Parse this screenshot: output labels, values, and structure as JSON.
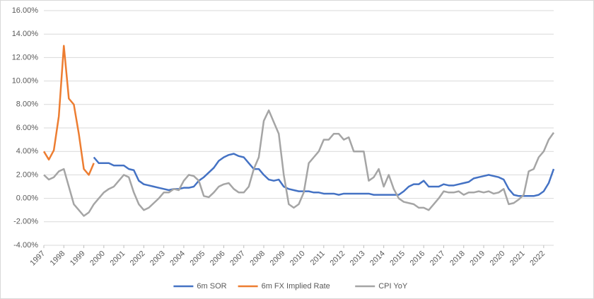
{
  "chart_data": {
    "type": "line",
    "x": [
      1997,
      1997.25,
      1997.5,
      1997.75,
      1998,
      1998.25,
      1998.5,
      1998.75,
      1999,
      1999.25,
      1999.5,
      1999.75,
      2000,
      2000.25,
      2000.5,
      2000.75,
      2001,
      2001.25,
      2001.5,
      2001.75,
      2002,
      2002.25,
      2002.5,
      2002.75,
      2003,
      2003.25,
      2003.5,
      2003.75,
      2004,
      2004.25,
      2004.5,
      2004.75,
      2005,
      2005.25,
      2005.5,
      2005.75,
      2006,
      2006.25,
      2006.5,
      2006.75,
      2007,
      2007.25,
      2007.5,
      2007.75,
      2008,
      2008.25,
      2008.5,
      2008.75,
      2009,
      2009.25,
      2009.5,
      2009.75,
      2010,
      2010.25,
      2010.5,
      2010.75,
      2011,
      2011.25,
      2011.5,
      2011.75,
      2012,
      2012.25,
      2012.5,
      2012.75,
      2013,
      2013.25,
      2013.5,
      2013.75,
      2014,
      2014.25,
      2014.5,
      2014.75,
      2015,
      2015.25,
      2015.5,
      2015.75,
      2016,
      2016.25,
      2016.5,
      2016.75,
      2017,
      2017.25,
      2017.5,
      2017.75,
      2018,
      2018.25,
      2018.5,
      2018.75,
      2019,
      2019.25,
      2019.5,
      2019.75,
      2020,
      2020.25,
      2020.5,
      2020.75,
      2021,
      2021.25,
      2021.5,
      2021.75,
      2022,
      2022.25,
      2022.5
    ],
    "series": [
      {
        "name": "6m SOR",
        "color": "#4472c4",
        "values": [
          null,
          null,
          null,
          null,
          null,
          null,
          null,
          null,
          null,
          null,
          3.5,
          3.0,
          3.0,
          3.0,
          2.8,
          2.8,
          2.8,
          2.5,
          2.4,
          1.5,
          1.2,
          1.1,
          1.0,
          0.9,
          0.8,
          0.7,
          0.8,
          0.8,
          0.9,
          0.9,
          1.0,
          1.5,
          1.8,
          2.2,
          2.6,
          3.2,
          3.5,
          3.7,
          3.8,
          3.6,
          3.5,
          3.0,
          2.5,
          2.5,
          2.0,
          1.6,
          1.5,
          1.6,
          1.0,
          0.8,
          0.7,
          0.6,
          0.6,
          0.6,
          0.5,
          0.5,
          0.4,
          0.4,
          0.4,
          0.3,
          0.4,
          0.4,
          0.4,
          0.4,
          0.4,
          0.4,
          0.3,
          0.3,
          0.3,
          0.3,
          0.3,
          0.3,
          0.6,
          1.0,
          1.2,
          1.2,
          1.5,
          1.0,
          1.0,
          1.0,
          1.2,
          1.1,
          1.1,
          1.2,
          1.3,
          1.4,
          1.7,
          1.8,
          1.9,
          2.0,
          1.9,
          1.8,
          1.6,
          0.8,
          0.3,
          0.2,
          0.2,
          0.2,
          0.2,
          0.3,
          0.6,
          1.3,
          2.5
        ]
      },
      {
        "name": "6m FX Implied Rate",
        "color": "#ed7d31",
        "values": [
          4.0,
          3.3,
          4.1,
          7.0,
          13.0,
          8.5,
          8.0,
          5.5,
          2.5,
          2.0,
          3.0,
          null,
          null,
          null,
          null,
          null,
          null,
          null,
          null,
          null,
          null,
          null,
          null,
          null,
          null,
          null,
          null,
          null,
          null,
          null,
          null,
          null,
          null,
          null,
          null,
          null,
          null,
          null,
          null,
          null,
          null,
          null,
          null,
          null,
          null,
          null,
          null,
          null,
          null,
          null,
          null,
          null,
          null,
          null,
          null,
          null,
          null,
          null,
          null,
          null,
          null,
          null,
          null,
          null,
          null,
          null,
          null,
          null,
          null,
          null,
          null,
          null,
          null,
          null,
          null,
          null,
          null,
          null,
          null,
          null,
          null,
          null,
          null,
          null,
          null,
          null,
          null,
          null,
          null,
          null,
          null,
          null,
          null,
          null,
          null,
          null,
          null,
          null,
          null,
          null,
          null,
          null,
          null
        ]
      },
      {
        "name": "CPI YoY",
        "color": "#a5a5a5",
        "values": [
          2.0,
          1.6,
          1.8,
          2.3,
          2.5,
          1.0,
          -0.5,
          -1.0,
          -1.5,
          -1.2,
          -0.5,
          0.0,
          0.5,
          0.8,
          1.0,
          1.5,
          2.0,
          1.8,
          0.5,
          -0.5,
          -1.0,
          -0.8,
          -0.4,
          0.0,
          0.5,
          0.5,
          0.8,
          0.7,
          1.5,
          2.0,
          1.9,
          1.5,
          0.2,
          0.1,
          0.5,
          1.0,
          1.2,
          1.3,
          0.8,
          0.5,
          0.5,
          1.0,
          2.5,
          3.5,
          6.6,
          7.5,
          6.5,
          5.5,
          2.0,
          -0.5,
          -0.8,
          -0.5,
          0.5,
          3.0,
          3.5,
          4.0,
          5.0,
          5.0,
          5.5,
          5.5,
          5.0,
          5.2,
          4.0,
          4.0,
          4.0,
          1.5,
          1.8,
          2.5,
          1.0,
          2.0,
          0.8,
          0.0,
          -0.3,
          -0.4,
          -0.5,
          -0.8,
          -0.8,
          -1.0,
          -0.5,
          0.0,
          0.6,
          0.5,
          0.5,
          0.6,
          0.3,
          0.5,
          0.5,
          0.6,
          0.5,
          0.6,
          0.4,
          0.5,
          0.8,
          -0.5,
          -0.4,
          -0.1,
          0.3,
          2.3,
          2.5,
          3.5,
          4.0,
          5.0,
          5.6
        ]
      }
    ],
    "xlim": [
      1997,
      2022.5
    ],
    "xticks": [
      1997,
      1998,
      1999,
      2000,
      2001,
      2002,
      2003,
      2004,
      2005,
      2006,
      2007,
      2008,
      2009,
      2010,
      2011,
      2012,
      2013,
      2014,
      2015,
      2016,
      2017,
      2018,
      2019,
      2020,
      2021,
      2022
    ],
    "ylim": [
      -4,
      16
    ],
    "yticks": [
      {
        "value": -4,
        "label": "-4.00%"
      },
      {
        "value": -2,
        "label": "-2.00%"
      },
      {
        "value": 0,
        "label": "0.00%"
      },
      {
        "value": 2,
        "label": "2.00%"
      },
      {
        "value": 4,
        "label": "4.00%"
      },
      {
        "value": 6,
        "label": "6.00%"
      },
      {
        "value": 8,
        "label": "8.00%"
      },
      {
        "value": 10,
        "label": "10.00%"
      },
      {
        "value": 12,
        "label": "12.00%"
      },
      {
        "value": 14,
        "label": "14.00%"
      },
      {
        "value": 16,
        "label": "16.00%"
      }
    ],
    "grid": true,
    "legend": "bottom"
  }
}
